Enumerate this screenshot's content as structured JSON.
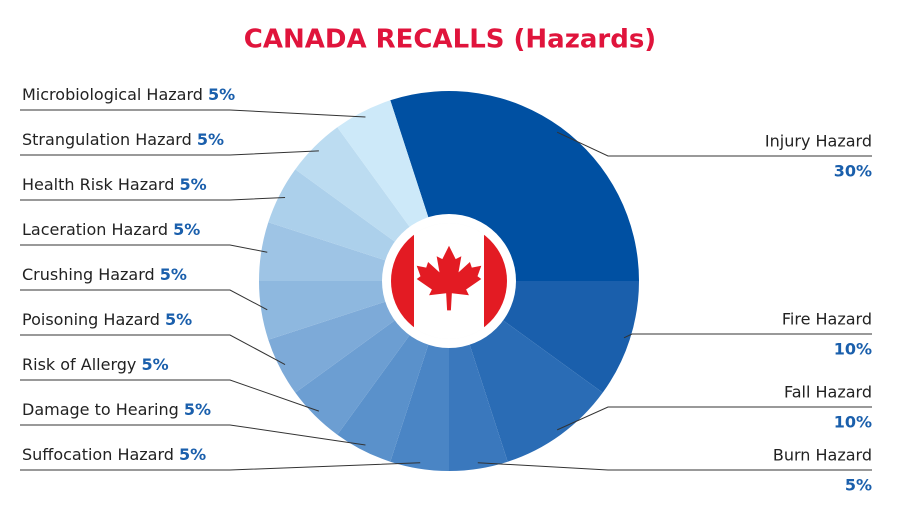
{
  "chart_data": {
    "type": "donut",
    "title": "CANADA RECALLS (Hazards)",
    "categories": [
      "Injury Hazard",
      "Fire Hazard",
      "Fall Hazard",
      "Burn Hazard",
      "Suffocation Hazard",
      "Damage to Hearing",
      "Risk of Allergy",
      "Poisoning Hazard",
      "Crushing Hazard",
      "Laceration Hazard",
      "Health Risk Hazard",
      "Strangulation Hazard",
      "Microbiological Hazard"
    ],
    "values": [
      30,
      10,
      10,
      5,
      5,
      5,
      5,
      5,
      5,
      5,
      5,
      5,
      5
    ],
    "value_labels": [
      "30%",
      "10%",
      "10%",
      "5%",
      "5%",
      "5%",
      "5%",
      "5%",
      "5%",
      "5%",
      "5%",
      "5%",
      "5%"
    ],
    "colors": [
      "#0050a2",
      "#1a5fac",
      "#2a6cb5",
      "#3a78bd",
      "#4a85c5",
      "#5a91cb",
      "#6c9ed2",
      "#7daad8",
      "#8eb8df",
      "#9ec4e5",
      "#acd0eb",
      "#bcdcf1",
      "#cde9f9"
    ]
  }
}
